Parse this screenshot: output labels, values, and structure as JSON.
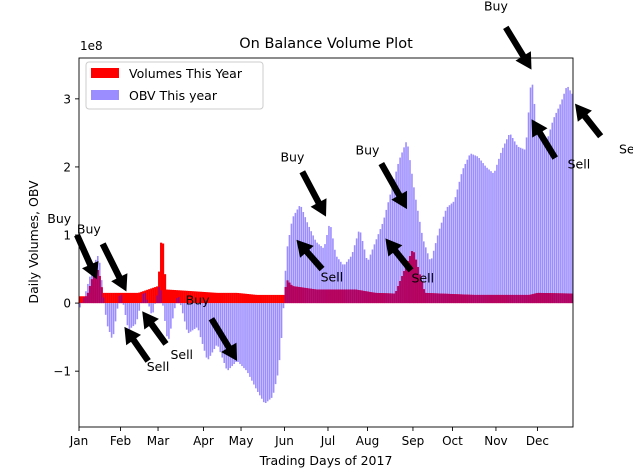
{
  "chart_data": {
    "type": "bar",
    "title": "On Balance Volume Plot",
    "xlabel": "Trading Days of 2017",
    "ylabel": "Daily Volumes, OBV",
    "y_multiplier": "1e8",
    "ylim": [
      -1.82,
      3.6
    ],
    "y_ticks": [
      {
        "value": -1,
        "label": "−1"
      },
      {
        "value": 0,
        "label": "0"
      },
      {
        "value": 1,
        "label": "1"
      },
      {
        "value": 2,
        "label": "2"
      },
      {
        "value": 3,
        "label": "3"
      }
    ],
    "x_range": [
      0,
      250
    ],
    "x_ticks": [
      {
        "label": "Jan",
        "day": 0
      },
      {
        "label": "Feb",
        "day": 21
      },
      {
        "label": "Mar",
        "day": 40
      },
      {
        "label": "Apr",
        "day": 63
      },
      {
        "label": "May",
        "day": 82
      },
      {
        "label": "Jun",
        "day": 104
      },
      {
        "label": "Jul",
        "day": 126
      },
      {
        "label": "Aug",
        "day": 146
      },
      {
        "label": "Sep",
        "day": 169
      },
      {
        "label": "Oct",
        "day": 189
      },
      {
        "label": "Nov",
        "day": 211
      },
      {
        "label": "Dec",
        "day": 232
      }
    ],
    "legend": {
      "placement": "upper-left",
      "entries": [
        {
          "name": "Volumes This Year",
          "color": "#ff0000"
        },
        {
          "name": "OBV This year",
          "color": "#9b8cff"
        }
      ]
    },
    "colors": {
      "volume": "#ff0000",
      "obv": "#9b8cff",
      "overlap": "#a0067c"
    },
    "obv_profile": [
      [
        0,
        -0.1
      ],
      [
        3,
        0.12
      ],
      [
        7,
        0.55
      ],
      [
        10,
        0.72
      ],
      [
        14,
        -0.3
      ],
      [
        17,
        -0.55
      ],
      [
        21,
        0.2
      ],
      [
        25,
        -0.4
      ],
      [
        29,
        -0.3
      ],
      [
        33,
        0.2
      ],
      [
        37,
        -0.2
      ],
      [
        41,
        0.3
      ],
      [
        45,
        -0.6
      ],
      [
        50,
        0.15
      ],
      [
        55,
        -0.45
      ],
      [
        60,
        -0.35
      ],
      [
        65,
        -0.85
      ],
      [
        70,
        -0.6
      ],
      [
        75,
        -1.0
      ],
      [
        80,
        -0.85
      ],
      [
        85,
        -1.0
      ],
      [
        90,
        -1.28
      ],
      [
        94,
        -1.48
      ],
      [
        98,
        -1.38
      ],
      [
        101,
        -1.0
      ],
      [
        103,
        -0.35
      ],
      [
        105,
        0.75
      ],
      [
        108,
        1.25
      ],
      [
        112,
        1.45
      ],
      [
        116,
        1.15
      ],
      [
        120,
        0.9
      ],
      [
        124,
        0.8
      ],
      [
        127,
        1.2
      ],
      [
        130,
        0.7
      ],
      [
        134,
        0.55
      ],
      [
        138,
        0.7
      ],
      [
        142,
        1.1
      ],
      [
        146,
        0.6
      ],
      [
        150,
        0.9
      ],
      [
        154,
        1.2
      ],
      [
        158,
        1.65
      ],
      [
        162,
        2.1
      ],
      [
        166,
        2.4
      ],
      [
        170,
        1.6
      ],
      [
        174,
        0.95
      ],
      [
        178,
        0.6
      ],
      [
        182,
        1.05
      ],
      [
        186,
        1.4
      ],
      [
        190,
        1.5
      ],
      [
        194,
        1.95
      ],
      [
        198,
        2.2
      ],
      [
        202,
        2.15
      ],
      [
        206,
        2.0
      ],
      [
        210,
        1.9
      ],
      [
        214,
        2.25
      ],
      [
        218,
        2.5
      ],
      [
        222,
        2.3
      ],
      [
        226,
        2.25
      ],
      [
        229,
        3.35
      ],
      [
        232,
        2.5
      ],
      [
        236,
        2.3
      ],
      [
        240,
        2.7
      ],
      [
        244,
        2.95
      ],
      [
        247,
        3.2
      ],
      [
        250,
        3.05
      ]
    ],
    "volume_profile": [
      [
        0,
        0.1
      ],
      [
        4,
        0.1
      ],
      [
        8,
        0.5
      ],
      [
        10,
        0.48
      ],
      [
        12,
        0.15
      ],
      [
        30,
        0.15
      ],
      [
        40,
        0.25
      ],
      [
        42,
        1.1
      ],
      [
        44,
        0.2
      ],
      [
        55,
        0.18
      ],
      [
        70,
        0.15
      ],
      [
        80,
        0.15
      ],
      [
        90,
        0.12
      ],
      [
        104,
        0.12
      ],
      [
        105,
        0.35
      ],
      [
        108,
        0.25
      ],
      [
        120,
        0.2
      ],
      [
        140,
        0.2
      ],
      [
        150,
        0.15
      ],
      [
        160,
        0.14
      ],
      [
        169,
        0.8
      ],
      [
        175,
        0.15
      ],
      [
        200,
        0.12
      ],
      [
        228,
        0.12
      ],
      [
        232,
        0.15
      ],
      [
        250,
        0.14
      ]
    ],
    "annotations": [
      {
        "text": "Buy",
        "tail_day": -1,
        "tail_y": 1.0,
        "head_day": 9,
        "head_y": 0.35
      },
      {
        "text": "Buy",
        "tail_day": 12,
        "tail_y": 0.87,
        "head_day": 24,
        "head_y": 0.17
      },
      {
        "text": "Sell",
        "tail_day": 35,
        "tail_y": -0.85,
        "head_day": 23,
        "head_y": -0.35
      },
      {
        "text": "Sell",
        "tail_day": 44,
        "tail_y": -0.6,
        "head_day": 32,
        "head_y": -0.12
      },
      {
        "text": "Buy",
        "tail_day": 67,
        "tail_y": -0.23,
        "head_day": 80,
        "head_y": -0.85
      },
      {
        "text": "Sell",
        "tail_day": 123,
        "tail_y": 0.5,
        "head_day": 110,
        "head_y": 0.93
      },
      {
        "text": "Buy",
        "tail_day": 113,
        "tail_y": 1.93,
        "head_day": 125,
        "head_y": 1.27
      },
      {
        "text": "Sell",
        "tail_day": 168,
        "tail_y": 0.48,
        "head_day": 155,
        "head_y": 0.95
      },
      {
        "text": "Buy",
        "tail_day": 153,
        "tail_y": 2.05,
        "head_day": 166,
        "head_y": 1.38
      },
      {
        "text": "Buy",
        "tail_day": 216,
        "tail_y": 4.05,
        "head_day": 229,
        "head_y": 3.43
      },
      {
        "text": "Sell",
        "tail_day": 241,
        "tail_y": 2.13,
        "head_day": 229,
        "head_y": 2.7
      },
      {
        "text": "Sell",
        "tail_day": 264,
        "tail_y": 2.45,
        "head_day": 251,
        "head_y": 2.93
      }
    ],
    "annotation_labels": [
      {
        "text": "Buy",
        "day": -10,
        "y": 1.18
      },
      {
        "text": "Buy",
        "day": 5,
        "y": 1.02
      },
      {
        "text": "Sell",
        "day": 40,
        "y": -1.0
      },
      {
        "text": "Sell",
        "day": 52,
        "y": -0.82
      },
      {
        "text": "Buy",
        "day": 60,
        "y": -0.02
      },
      {
        "text": "Sell",
        "day": 128,
        "y": 0.32
      },
      {
        "text": "Buy",
        "day": 108,
        "y": 2.08
      },
      {
        "text": "Sell",
        "day": 174,
        "y": 0.3
      },
      {
        "text": "Buy",
        "day": 146,
        "y": 2.18
      },
      {
        "text": "Buy",
        "day": 211,
        "y": 4.3
      },
      {
        "text": "Sell",
        "day": 253,
        "y": 1.98
      },
      {
        "text": "Sell",
        "day": 279,
        "y": 2.2
      }
    ]
  }
}
